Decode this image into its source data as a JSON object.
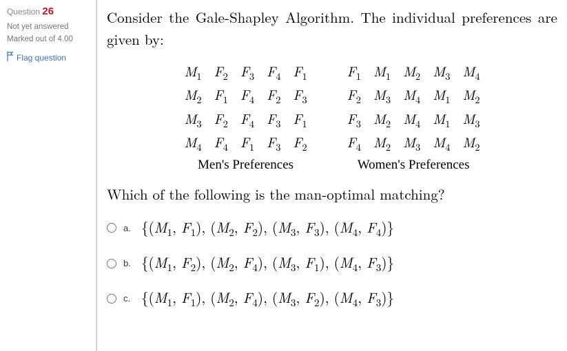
{
  "sidebar": {
    "question_label": "Question",
    "question_number": "26",
    "status": "Not yet answered",
    "marks": "Marked out of 4.00",
    "flag": "Flag question"
  },
  "prompt": {
    "intro": "Consider the Gale-Shapley Algorithm.  The individual preferences are given by:",
    "men_caption": "Men's Preferences",
    "women_caption": "Women's Preferences",
    "question": "Which of the following is the man-optimal matching?"
  },
  "men_prefs": {
    "rows": [
      {
        "who": "M1",
        "p": [
          "F2",
          "F3",
          "F4",
          "F1"
        ]
      },
      {
        "who": "M2",
        "p": [
          "F1",
          "F4",
          "F2",
          "F3"
        ]
      },
      {
        "who": "M3",
        "p": [
          "F2",
          "F4",
          "F3",
          "F1"
        ]
      },
      {
        "who": "M4",
        "p": [
          "F4",
          "F1",
          "F3",
          "F2"
        ]
      }
    ]
  },
  "women_prefs": {
    "rows": [
      {
        "who": "F1",
        "p": [
          "M1",
          "M2",
          "M3",
          "M4"
        ]
      },
      {
        "who": "F2",
        "p": [
          "M3",
          "M4",
          "M1",
          "M2"
        ]
      },
      {
        "who": "F3",
        "p": [
          "M2",
          "M4",
          "M1",
          "M3"
        ]
      },
      {
        "who": "F4",
        "p": [
          "M2",
          "M3",
          "M4",
          "M2"
        ]
      }
    ]
  },
  "options": [
    {
      "letter": "a.",
      "pairs": [
        [
          "M1",
          "F1"
        ],
        [
          "M2",
          "F2"
        ],
        [
          "M3",
          "F3"
        ],
        [
          "M4",
          "F4"
        ]
      ]
    },
    {
      "letter": "b.",
      "pairs": [
        [
          "M1",
          "F2"
        ],
        [
          "M2",
          "F4"
        ],
        [
          "M3",
          "F1"
        ],
        [
          "M4",
          "F3"
        ]
      ]
    },
    {
      "letter": "c.",
      "pairs": [
        [
          "M1",
          "F1"
        ],
        [
          "M2",
          "F4"
        ],
        [
          "M3",
          "F2"
        ],
        [
          "M4",
          "F3"
        ]
      ]
    }
  ],
  "colors": {
    "question_num": "#b71c1c",
    "link": "#3b73af",
    "text": "#000000",
    "sidebar_text": "#777777"
  }
}
